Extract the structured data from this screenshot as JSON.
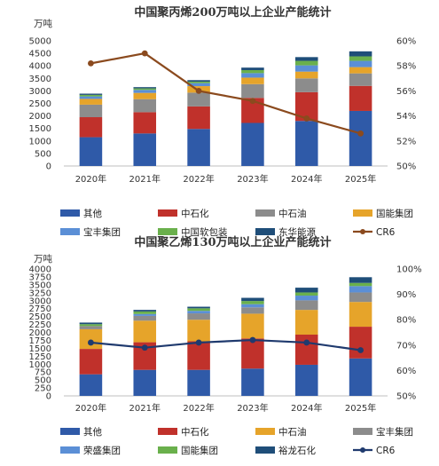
{
  "chart_data": [
    {
      "type": "bar",
      "stacked": true,
      "title": "中国聚丙烯200万吨以上企业产能统计",
      "ylabel": "万吨",
      "categories": [
        "2020年",
        "2021年",
        "2022年",
        "2023年",
        "2024年",
        "2025年"
      ],
      "ylim": [
        0,
        5000
      ],
      "y_ticks": [
        "0",
        "500",
        "1000",
        "1500",
        "2000",
        "2500",
        "3000",
        "3500",
        "4000",
        "4500",
        "5000"
      ],
      "y2lim": [
        50,
        60
      ],
      "y2_ticks": [
        "50%",
        "52%",
        "54%",
        "56%",
        "58%",
        "60%"
      ],
      "series": [
        {
          "name": "其他",
          "color": "#2f5aa8",
          "values": [
            1150,
            1300,
            1480,
            1720,
            1800,
            2200
          ]
        },
        {
          "name": "中石化",
          "color": "#c0312b",
          "values": [
            800,
            850,
            900,
            1000,
            1150,
            1000
          ]
        },
        {
          "name": "中石油",
          "color": "#8c8c8c",
          "values": [
            500,
            520,
            550,
            550,
            550,
            500
          ]
        },
        {
          "name": "国能集团",
          "color": "#e6a42a",
          "values": [
            230,
            250,
            260,
            260,
            270,
            250
          ]
        },
        {
          "name": "宝丰集团",
          "color": "#5b8fd6",
          "values": [
            100,
            120,
            120,
            180,
            250,
            250
          ]
        },
        {
          "name": "中国软包装",
          "color": "#6ab04c",
          "values": [
            60,
            60,
            60,
            120,
            180,
            180
          ]
        },
        {
          "name": "东华能源",
          "color": "#1f4e79",
          "values": [
            50,
            50,
            60,
            100,
            150,
            200
          ]
        }
      ],
      "line": {
        "name": "CR6",
        "color": "#8b4a1e",
        "axis": "right",
        "values": [
          58.2,
          59.0,
          56.0,
          55.2,
          53.8,
          52.6
        ]
      },
      "legend": "bottom"
    },
    {
      "type": "bar",
      "stacked": true,
      "title": "中国聚乙烯130万吨以上企业产能统计",
      "ylabel": "万吨",
      "categories": [
        "2020年",
        "2021年",
        "2022年",
        "2023年",
        "2024年",
        "2025年"
      ],
      "ylim": [
        0,
        4000
      ],
      "y_ticks": [
        "0",
        "250",
        "500",
        "750",
        "1000",
        "1250",
        "1500",
        "1750",
        "2000",
        "2250",
        "2500",
        "2750",
        "3000",
        "3250",
        "3500",
        "3750",
        "4000"
      ],
      "y2lim": [
        50,
        100
      ],
      "y2_ticks": [
        "50%",
        "60%",
        "70%",
        "80%",
        "90%",
        "100%"
      ],
      "series": [
        {
          "name": "其他",
          "color": "#2f5aa8",
          "values": [
            680,
            820,
            820,
            860,
            980,
            1180
          ]
        },
        {
          "name": "中石化",
          "color": "#c0312b",
          "values": [
            800,
            870,
            900,
            950,
            950,
            1000
          ]
        },
        {
          "name": "中石油",
          "color": "#e6a42a",
          "values": [
            620,
            680,
            680,
            780,
            780,
            780
          ]
        },
        {
          "name": "宝丰集团",
          "color": "#8c8c8c",
          "values": [
            100,
            150,
            200,
            200,
            300,
            300
          ]
        },
        {
          "name": "荣盛集团",
          "color": "#5b8fd6",
          "values": [
            0,
            60,
            80,
            100,
            150,
            200
          ]
        },
        {
          "name": "国能集团",
          "color": "#6ab04c",
          "values": [
            60,
            80,
            80,
            100,
            100,
            100
          ]
        },
        {
          "name": "裕龙石化",
          "color": "#1f4e79",
          "values": [
            50,
            50,
            50,
            100,
            150,
            180
          ]
        }
      ],
      "line": {
        "name": "CR6",
        "color": "#1f3a6e",
        "axis": "right",
        "values": [
          71,
          69,
          71,
          72,
          71,
          68
        ]
      },
      "legend": "bottom"
    }
  ]
}
